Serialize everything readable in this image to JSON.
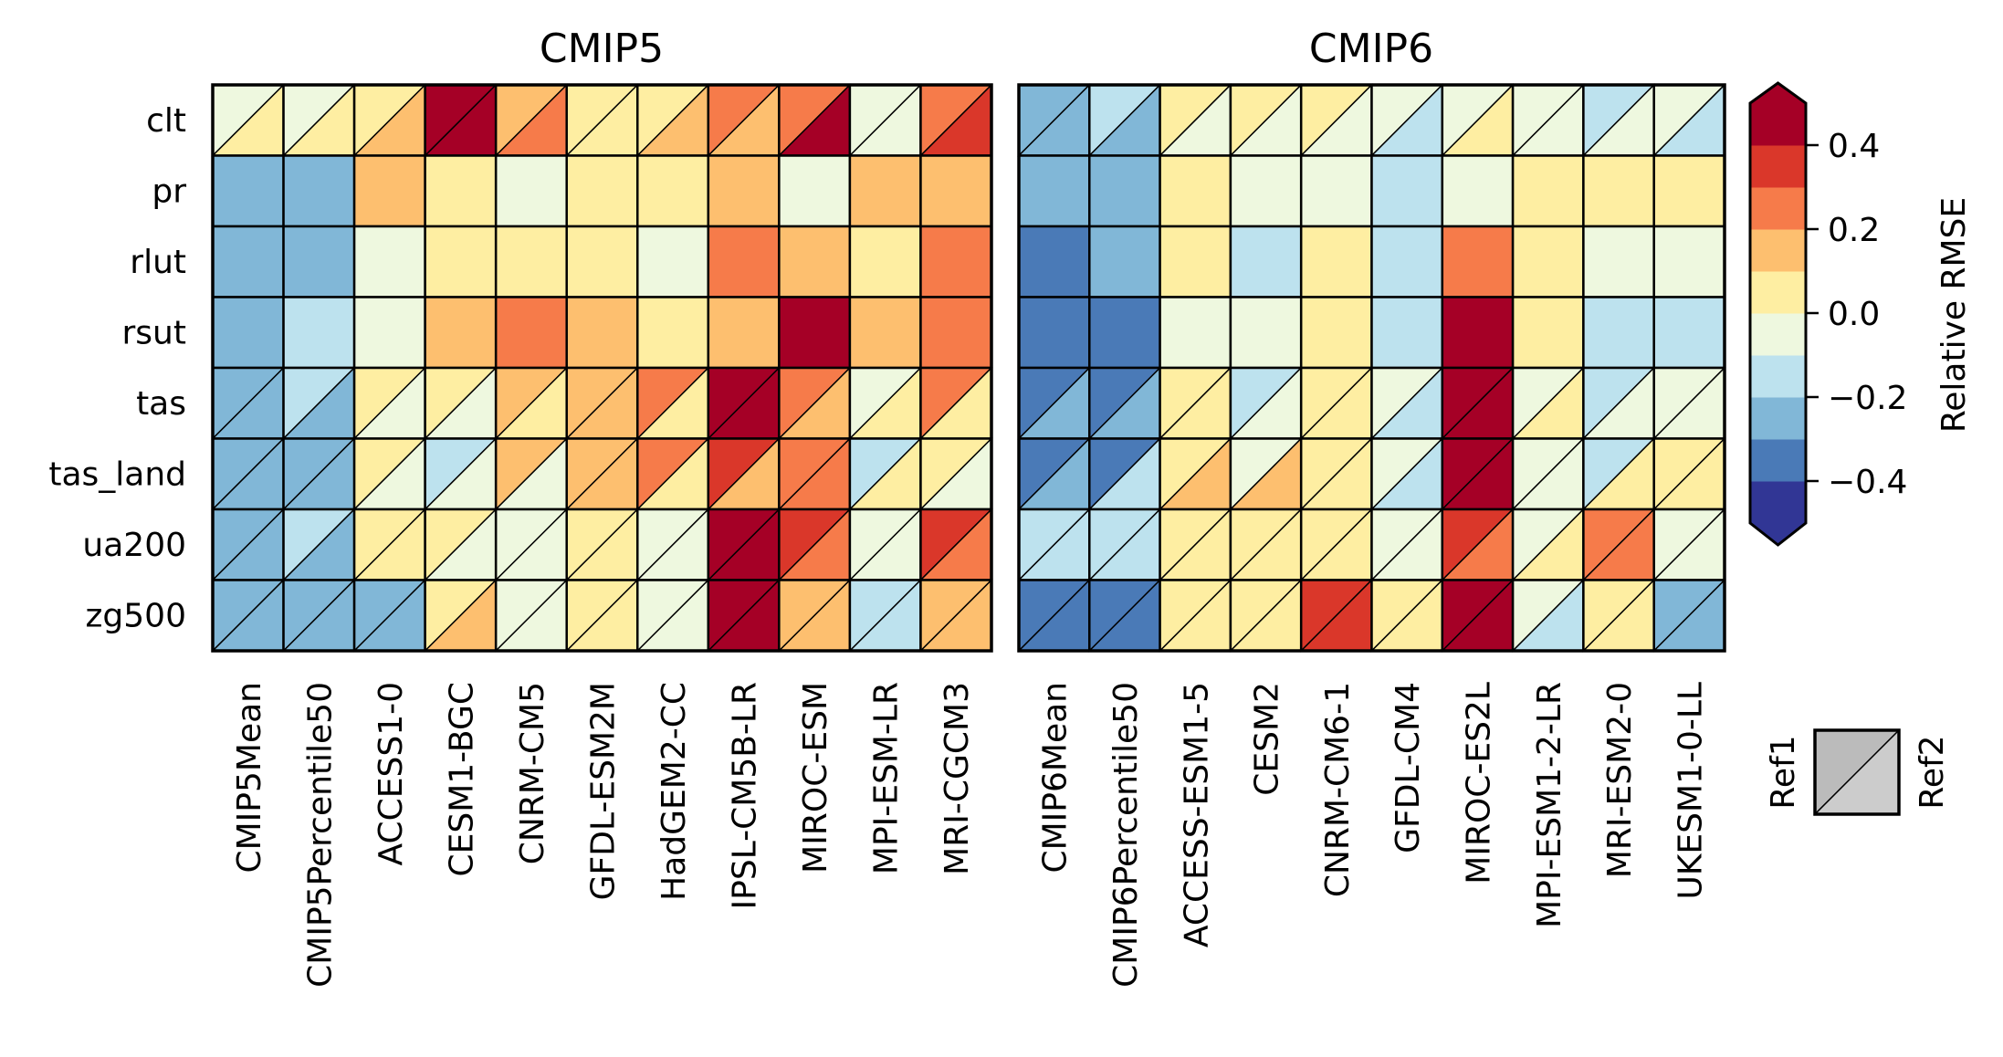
{
  "chart_data": {
    "type": "heatmap",
    "rows": [
      "clt",
      "pr",
      "rlut",
      "rsut",
      "tas",
      "tas_land",
      "ua200",
      "zg500"
    ],
    "panels": [
      {
        "title": "CMIP5",
        "columns": [
          "CMIP5Mean",
          "CMIP5Percentile50",
          "ACCESS1-0",
          "CESM1-BGC",
          "CNRM-CM5",
          "GFDL-ESM2M",
          "HadGEM2-CC",
          "IPSL-CM5B-LR",
          "MIROC-ESM",
          "MPI-ESM-LR",
          "MRI-CGCM3"
        ],
        "values": [
          [
            [
              -0.05,
              0.05
            ],
            [
              -0.05,
              0.05
            ],
            [
              0.05,
              0.15
            ],
            [
              0.45,
              0.45
            ],
            [
              0.15,
              0.25
            ],
            [
              0.05,
              0.05
            ],
            [
              0.05,
              0.15
            ],
            [
              0.25,
              0.15
            ],
            [
              0.25,
              0.45
            ],
            [
              -0.05,
              -0.05
            ],
            [
              0.25,
              0.35
            ]
          ],
          [
            -0.25,
            -0.25,
            0.15,
            0.05,
            -0.05,
            0.05,
            0.05,
            0.15,
            -0.05,
            0.15,
            0.15
          ],
          [
            -0.25,
            -0.25,
            -0.05,
            0.05,
            0.05,
            0.05,
            -0.05,
            0.25,
            0.15,
            0.05,
            0.25
          ],
          [
            -0.25,
            -0.15,
            -0.05,
            0.15,
            0.25,
            0.15,
            0.05,
            0.15,
            0.45,
            0.15,
            0.25
          ],
          [
            [
              -0.25,
              -0.25
            ],
            [
              -0.15,
              -0.25
            ],
            [
              0.05,
              -0.05
            ],
            [
              0.05,
              -0.05
            ],
            [
              0.15,
              0.05
            ],
            [
              0.15,
              0.15
            ],
            [
              0.25,
              0.05
            ],
            [
              0.45,
              0.45
            ],
            [
              0.25,
              0.15
            ],
            [
              -0.05,
              0.05
            ],
            [
              0.25,
              0.05
            ]
          ],
          [
            [
              -0.25,
              -0.25
            ],
            [
              -0.25,
              -0.25
            ],
            [
              0.05,
              -0.05
            ],
            [
              -0.15,
              -0.05
            ],
            [
              0.15,
              -0.05
            ],
            [
              0.15,
              0.15
            ],
            [
              0.25,
              0.05
            ],
            [
              0.35,
              0.15
            ],
            [
              0.25,
              0.25
            ],
            [
              -0.15,
              0.05
            ],
            [
              0.05,
              -0.05
            ]
          ],
          [
            [
              -0.25,
              -0.25
            ],
            [
              -0.15,
              -0.25
            ],
            [
              0.05,
              0.05
            ],
            [
              0.05,
              -0.05
            ],
            [
              -0.05,
              -0.05
            ],
            [
              0.05,
              0.05
            ],
            [
              -0.05,
              -0.05
            ],
            [
              0.45,
              0.45
            ],
            [
              0.35,
              0.25
            ],
            [
              -0.05,
              -0.05
            ],
            [
              0.35,
              0.25
            ]
          ],
          [
            [
              -0.25,
              -0.25
            ],
            [
              -0.25,
              -0.25
            ],
            [
              -0.25,
              -0.25
            ],
            [
              0.05,
              0.15
            ],
            [
              -0.05,
              -0.05
            ],
            [
              0.05,
              0.05
            ],
            [
              -0.05,
              -0.05
            ],
            [
              0.45,
              0.45
            ],
            [
              0.15,
              0.15
            ],
            [
              -0.15,
              -0.15
            ],
            [
              0.15,
              0.15
            ]
          ]
        ]
      },
      {
        "title": "CMIP6",
        "columns": [
          "CMIP6Mean",
          "CMIP6Percentile50",
          "ACCESS-ESM1-5",
          "CESM2",
          "CNRM-CM6-1",
          "GFDL-CM4",
          "MIROC-ES2L",
          "MPI-ESM1-2-LR",
          "MRI-ESM2-0",
          "UKESM1-0-LL"
        ],
        "values": [
          [
            [
              -0.25,
              -0.25
            ],
            [
              -0.15,
              -0.25
            ],
            [
              0.05,
              -0.05
            ],
            [
              0.05,
              -0.05
            ],
            [
              0.05,
              -0.05
            ],
            [
              -0.05,
              -0.15
            ],
            [
              -0.05,
              0.05
            ],
            [
              -0.05,
              -0.05
            ],
            [
              -0.15,
              -0.05
            ],
            [
              -0.05,
              -0.15
            ]
          ],
          [
            -0.25,
            -0.25,
            0.05,
            -0.05,
            -0.05,
            -0.15,
            -0.05,
            0.05,
            0.05,
            0.05
          ],
          [
            -0.35,
            -0.25,
            0.05,
            -0.15,
            0.05,
            -0.15,
            0.25,
            0.05,
            -0.05,
            -0.05
          ],
          [
            -0.35,
            -0.35,
            -0.05,
            -0.05,
            0.05,
            -0.15,
            0.45,
            0.05,
            -0.15,
            -0.15
          ],
          [
            [
              -0.35,
              -0.25
            ],
            [
              -0.35,
              -0.25
            ],
            [
              0.05,
              0.05
            ],
            [
              -0.15,
              -0.05
            ],
            [
              0.05,
              0.05
            ],
            [
              -0.05,
              -0.15
            ],
            [
              0.45,
              0.45
            ],
            [
              -0.05,
              0.05
            ],
            [
              -0.15,
              -0.05
            ],
            [
              -0.05,
              -0.05
            ]
          ],
          [
            [
              -0.35,
              -0.25
            ],
            [
              -0.35,
              -0.15
            ],
            [
              0.05,
              0.15
            ],
            [
              -0.05,
              0.15
            ],
            [
              0.05,
              0.05
            ],
            [
              -0.05,
              -0.15
            ],
            [
              0.45,
              0.45
            ],
            [
              -0.05,
              -0.05
            ],
            [
              -0.15,
              0.05
            ],
            [
              0.05,
              0.05
            ]
          ],
          [
            [
              -0.15,
              -0.15
            ],
            [
              -0.15,
              -0.15
            ],
            [
              0.05,
              0.05
            ],
            [
              0.05,
              0.05
            ],
            [
              0.05,
              0.05
            ],
            [
              -0.05,
              -0.05
            ],
            [
              0.35,
              0.25
            ],
            [
              -0.05,
              0.05
            ],
            [
              0.25,
              0.25
            ],
            [
              -0.05,
              -0.05
            ]
          ],
          [
            [
              -0.35,
              -0.35
            ],
            [
              -0.35,
              -0.35
            ],
            [
              0.05,
              0.05
            ],
            [
              0.05,
              0.05
            ],
            [
              0.35,
              0.35
            ],
            [
              0.05,
              0.05
            ],
            [
              0.45,
              0.45
            ],
            [
              -0.05,
              -0.15
            ],
            [
              0.05,
              0.05
            ],
            [
              -0.25,
              -0.25
            ]
          ]
        ]
      }
    ],
    "colorbar": {
      "label": "Relative RMSE",
      "range": [
        -0.5,
        0.5
      ],
      "step": 0.1,
      "extend": "both",
      "ticks": [
        0.4,
        0.2,
        0.0,
        -0.2,
        -0.4
      ],
      "tick_labels": [
        "0.4",
        "0.2",
        "0.0",
        "−0.2",
        "−0.4"
      ],
      "colors": [
        "#313695",
        "#4a7ab7",
        "#81b7d7",
        "#bde2ee",
        "#eef8df",
        "#feeea2",
        "#fdbf6f",
        "#f67b4a",
        "#da372a",
        "#a50026"
      ]
    },
    "legend": {
      "ref1": "Ref1",
      "ref2": "Ref2",
      "ref1_color": "#bbbbbb",
      "ref2_color": "#cccccc"
    }
  }
}
